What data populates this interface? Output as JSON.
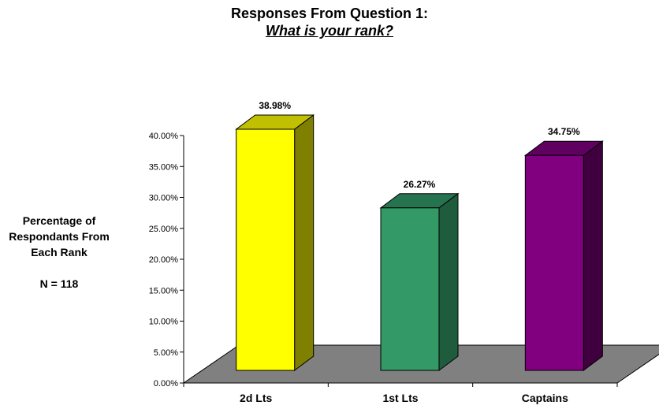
{
  "chart_data": {
    "type": "bar",
    "title": "Responses From Question 1:",
    "subtitle": "What is your rank?",
    "ylabel": "Percentage of Respondants From Each Rank",
    "note": "N = 118",
    "categories": [
      "2d Lts",
      "1st Lts",
      "Captains"
    ],
    "values": [
      38.98,
      26.27,
      34.75
    ],
    "value_labels": [
      "38.98%",
      "26.27%",
      "34.75%"
    ],
    "yticks": [
      "0.00%",
      "5.00%",
      "10.00%",
      "15.00%",
      "20.00%",
      "25.00%",
      "30.00%",
      "35.00%",
      "40.00%"
    ],
    "ylim": [
      0,
      40
    ],
    "three_d": true,
    "colors": {
      "bars": [
        "#ffff00",
        "#339966",
        "#800080"
      ],
      "bar_sides": [
        "#808000",
        "#1f5c3d",
        "#400040"
      ],
      "bar_tops": [
        "#c0c000",
        "#267350",
        "#600060"
      ],
      "floor": "#808080"
    }
  }
}
